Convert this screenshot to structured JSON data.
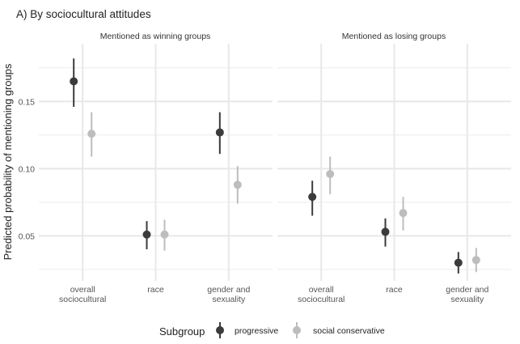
{
  "chart_data": {
    "type": "scatter",
    "subtype": "pointrange",
    "title": "A) By sociocultural attitudes",
    "ylabel": "Predicted probability of mentioning groups",
    "xlabel": "",
    "ylim": [
      0.0165,
      0.193
    ],
    "yticks": [
      0.05,
      0.1,
      0.15
    ],
    "ytick_labels": [
      "0.05",
      "0.10",
      "0.15"
    ],
    "grid": true,
    "categories": [
      "overall sociocultural",
      "race",
      "gender and sexuality"
    ],
    "category_lines": [
      [
        "overall",
        "sociocultural"
      ],
      [
        "race"
      ],
      [
        "gender and",
        "sexuality"
      ]
    ],
    "legend": {
      "title": "Subgroup",
      "placement": "bottom",
      "entries": [
        {
          "name": "progressive",
          "color": "#3b3b3b"
        },
        {
          "name": "social conservative",
          "color": "#bdbdbd"
        }
      ]
    },
    "panels": [
      {
        "strip": "Mentioned as winning groups",
        "series": [
          {
            "name": "progressive",
            "values": [
              0.165,
              0.051,
              0.127
            ],
            "lower": [
              0.146,
              0.04,
              0.111
            ],
            "upper": [
              0.182,
              0.061,
              0.142
            ]
          },
          {
            "name": "social conservative",
            "values": [
              0.126,
              0.051,
              0.088
            ],
            "lower": [
              0.109,
              0.039,
              0.074
            ],
            "upper": [
              0.142,
              0.062,
              0.102
            ]
          }
        ]
      },
      {
        "strip": "Mentioned as losing groups",
        "series": [
          {
            "name": "progressive",
            "values": [
              0.079,
              0.053,
              0.03
            ],
            "lower": [
              0.065,
              0.042,
              0.022
            ],
            "upper": [
              0.091,
              0.063,
              0.038
            ]
          },
          {
            "name": "social conservative",
            "values": [
              0.096,
              0.067,
              0.032
            ],
            "lower": [
              0.081,
              0.054,
              0.023
            ],
            "upper": [
              0.109,
              0.079,
              0.041
            ]
          }
        ]
      }
    ]
  }
}
